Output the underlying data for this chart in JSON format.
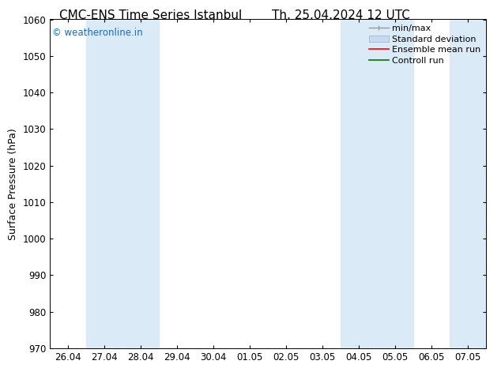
{
  "title_left": "CMC-ENS Time Series Istanbul",
  "title_right": "Th. 25.04.2024 12 UTC",
  "ylabel": "Surface Pressure (hPa)",
  "ylim": [
    970,
    1060
  ],
  "yticks": [
    970,
    980,
    990,
    1000,
    1010,
    1020,
    1030,
    1040,
    1050,
    1060
  ],
  "xtick_labels": [
    "26.04",
    "27.04",
    "28.04",
    "29.04",
    "30.04",
    "01.05",
    "02.05",
    "03.05",
    "04.05",
    "05.05",
    "06.05",
    "07.05"
  ],
  "watermark": "© weatheronline.in",
  "watermark_color": "#1a6abf",
  "bg_color": "#ffffff",
  "plot_bg_color": "#ffffff",
  "shade_color": "#dbeaf7",
  "shade_columns": [
    1,
    2,
    8,
    9,
    11
  ],
  "legend_entries": [
    {
      "label": "min/max",
      "color": "#aaaaaa",
      "lw": 1.2
    },
    {
      "label": "Standard deviation",
      "color": "#c5daf0",
      "lw": 5
    },
    {
      "label": "Ensemble mean run",
      "color": "#ff0000",
      "lw": 1.2
    },
    {
      "label": "Controll run",
      "color": "#007700",
      "lw": 1.2
    }
  ],
  "title_fontsize": 11,
  "ylabel_fontsize": 9,
  "tick_fontsize": 8.5,
  "legend_fontsize": 8
}
